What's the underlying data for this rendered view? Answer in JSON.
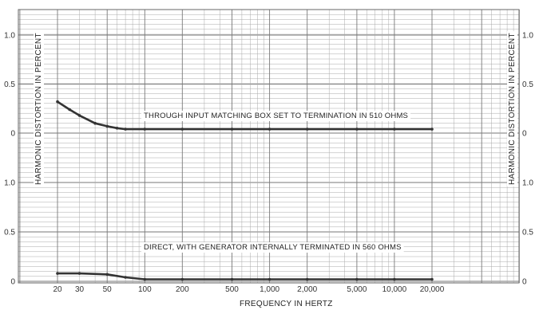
{
  "chart_data": {
    "type": "line",
    "xlabel": "FREQUENCY IN HERTZ",
    "ylabel_left": "HARMONIC DISTORTION IN PERCENT",
    "ylabel_right": "HARMONIC DISTORTION IN PERCENT",
    "x_scale": "log",
    "xlim": [
      20,
      20000
    ],
    "x_ticks": [
      "20",
      "30",
      "50",
      "100",
      "200",
      "500",
      "1,000",
      "2,000",
      "5,000",
      "10,000",
      "20,000"
    ],
    "grid": true,
    "panels": [
      {
        "name": "upper",
        "annotation": "THROUGH INPUT MATCHING BOX SET TO TERMINATION IN 510 OHMS",
        "ylim": [
          0,
          1.0
        ],
        "y_ticks": [
          "1.0",
          "0.5",
          "0"
        ],
        "series": [
          {
            "x": [
              20,
              25,
              30,
              40,
              50,
              60,
              70,
              100,
              200,
              500,
              1000,
              2000,
              5000,
              10000,
              20000
            ],
            "y": [
              0.32,
              0.24,
              0.18,
              0.1,
              0.07,
              0.05,
              0.04,
              0.04,
              0.04,
              0.04,
              0.04,
              0.04,
              0.04,
              0.04,
              0.04
            ]
          }
        ]
      },
      {
        "name": "lower",
        "annotation": "DIRECT, WITH GENERATOR INTERNALLY TERMINATED IN 560 OHMS",
        "ylim": [
          0,
          1.0
        ],
        "y_ticks": [
          "1.0",
          "0.5",
          "0"
        ],
        "series": [
          {
            "x": [
              20,
              30,
              50,
              70,
              100,
              200,
              500,
              1000,
              2000,
              5000,
              10000,
              20000
            ],
            "y": [
              0.08,
              0.08,
              0.07,
              0.04,
              0.02,
              0.02,
              0.02,
              0.02,
              0.02,
              0.02,
              0.02,
              0.02
            ]
          }
        ]
      }
    ],
    "colors": {
      "grid": "#a9a9a9",
      "curve": "#333333",
      "axis": "#666666"
    }
  }
}
